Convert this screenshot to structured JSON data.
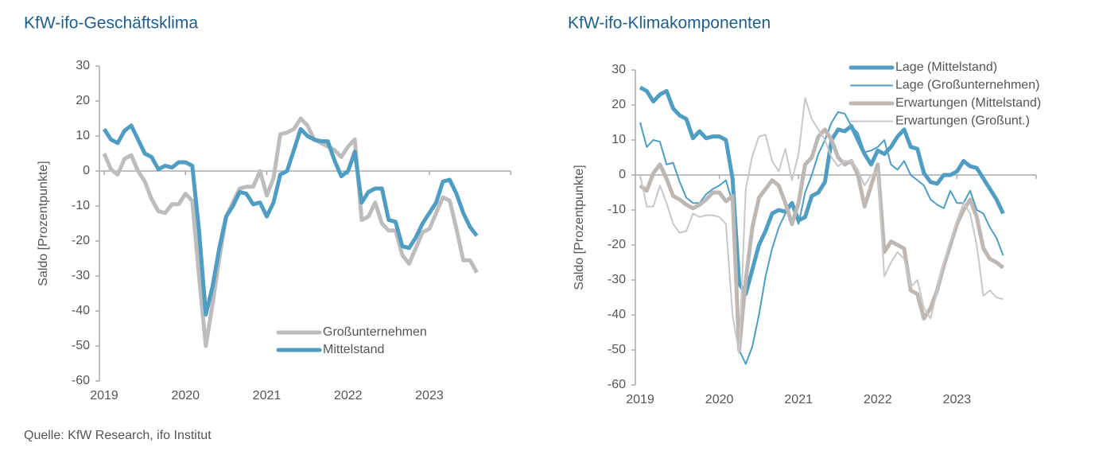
{
  "chart_data": [
    {
      "type": "line",
      "title": "KfW-ifo-Geschäftsklima",
      "ylabel": "Saldo [Prozentpunkte]",
      "categories": [
        "2019",
        null,
        null,
        null,
        null,
        null,
        null,
        null,
        null,
        null,
        null,
        null,
        "2020",
        null,
        null,
        null,
        null,
        null,
        null,
        null,
        null,
        null,
        null,
        null,
        "2021",
        null,
        null,
        null,
        null,
        null,
        null,
        null,
        null,
        null,
        null,
        null,
        "2022",
        null,
        null,
        null,
        null,
        null,
        null,
        null,
        null,
        null,
        null,
        null,
        "2023",
        null,
        null,
        null,
        null,
        null,
        null,
        null
      ],
      "ylim": [
        -60,
        30
      ],
      "yticks": [
        -60,
        -50,
        -40,
        -30,
        -20,
        -10,
        0,
        10,
        20,
        30
      ],
      "legend": "lower center",
      "series": [
        {
          "name": "Großunternehmen",
          "color": "#bdbdbd",
          "line_width": 5,
          "values": [
            5,
            0.5,
            -1,
            3.5,
            4.5,
            0,
            -3,
            -8,
            -11.5,
            -12,
            -9.5,
            -9.5,
            -6.5,
            -8.5,
            -30,
            -50,
            -38,
            -25,
            -13,
            -9,
            -5,
            -4.5,
            -4.5,
            0,
            -7,
            -2,
            10.5,
            11,
            12,
            15,
            13,
            9,
            8,
            7,
            6,
            4,
            7,
            9,
            -14,
            -13,
            -9,
            -15,
            -17,
            -17,
            -24,
            -26.5,
            -22,
            -17.5,
            -16.5,
            -12,
            -7.5,
            -8.5,
            -16.5,
            -25.5,
            -25.5,
            -29
          ]
        },
        {
          "name": "Mittelstand",
          "color": "#4f9dc2",
          "line_width": 5,
          "values": [
            12,
            9,
            8,
            11.5,
            13,
            9,
            5,
            4,
            0.5,
            1.5,
            1,
            2.5,
            2.5,
            1.5,
            -17,
            -41,
            -33,
            -22,
            -13,
            -10,
            -6,
            -6.5,
            -9.5,
            -9,
            -13,
            -9,
            -1,
            0,
            6,
            12,
            10,
            9,
            8.5,
            8.5,
            3,
            -1.5,
            0,
            5.5,
            -9,
            -6,
            -5,
            -5,
            -14,
            -14.5,
            -21.5,
            -22,
            -19,
            -15,
            -12,
            -9,
            -3,
            -2.5,
            -6.5,
            -12,
            -16,
            -18.5
          ]
        }
      ]
    },
    {
      "type": "line",
      "title": "KfW-ifo-Klimakomponenten",
      "ylabel": "Saldo [Prozentpunkte]",
      "categories": [
        "2019",
        null,
        null,
        null,
        null,
        null,
        null,
        null,
        null,
        null,
        null,
        null,
        "2020",
        null,
        null,
        null,
        null,
        null,
        null,
        null,
        null,
        null,
        null,
        null,
        "2021",
        null,
        null,
        null,
        null,
        null,
        null,
        null,
        null,
        null,
        null,
        null,
        "2022",
        null,
        null,
        null,
        null,
        null,
        null,
        null,
        null,
        null,
        null,
        null,
        "2023",
        null,
        null,
        null,
        null,
        null,
        null,
        null
      ],
      "ylim": [
        -60,
        30
      ],
      "yticks": [
        -60,
        -50,
        -40,
        -30,
        -20,
        -10,
        0,
        10,
        20,
        30
      ],
      "legend": "upper right",
      "series": [
        {
          "name": "Lage (Mittelstand)",
          "color": "#4f9dc2",
          "line_width": 5,
          "values": [
            25,
            24,
            21,
            23,
            24,
            19,
            17,
            16,
            10.5,
            12.5,
            10.5,
            11,
            11,
            10,
            -1,
            -31,
            -34,
            -27,
            -20,
            -16,
            -11,
            -10,
            -10.5,
            -8,
            -13,
            -12,
            -6,
            -5,
            -2,
            10,
            13,
            12.5,
            14,
            10,
            6,
            3,
            7,
            6,
            8,
            11,
            13,
            8,
            7.5,
            0.5,
            -2,
            -2.5,
            0,
            0,
            1,
            4,
            2.5,
            2,
            -1,
            -4,
            -7,
            -11
          ]
        },
        {
          "name": "Lage (Großunternehmen)",
          "color": "#4f9dc2",
          "line_width": 2,
          "values": [
            15,
            8,
            10,
            9.5,
            3,
            3.5,
            -2,
            -6.5,
            -8,
            -8,
            -5.5,
            -4,
            -3,
            -1.5,
            -8,
            -50,
            -54,
            -49,
            -40,
            -29,
            -21,
            -15,
            -11,
            -8,
            -14,
            -5,
            0,
            6,
            10,
            15,
            18,
            17.5,
            14,
            12,
            6.5,
            7,
            8,
            10,
            3,
            1.5,
            4,
            0,
            -1.5,
            -3,
            -7,
            -8.5,
            -9.5,
            -4.5,
            -8,
            -8,
            -4.5,
            -10,
            -11,
            -15,
            -18,
            -23
          ]
        },
        {
          "name": "Erwartungen (Mittelstand)",
          "color": "#bdb8b4",
          "line_width": 5,
          "values": [
            -3,
            -4.5,
            0.5,
            3,
            -1,
            -6,
            -7,
            -8.5,
            -9.5,
            -8.5,
            -7,
            -5,
            -5,
            -7.5,
            -6,
            -50,
            -30,
            -15,
            -6.5,
            -4,
            -1.5,
            -3,
            -8,
            -14,
            -8,
            3,
            5,
            11,
            13,
            10,
            5,
            3,
            4,
            0,
            -9,
            -3,
            3,
            -22,
            -19,
            -20,
            -21,
            -33,
            -34,
            -41,
            -38,
            -33,
            -26,
            -20,
            -14,
            -10,
            -7,
            -12,
            -21,
            -24,
            -25,
            -26.5
          ]
        },
        {
          "name": "Erwartungen (Großunt.)",
          "color": "#c8c8c8",
          "line_width": 2,
          "values": [
            0,
            -9,
            -9,
            -3,
            -8,
            -14,
            -16.5,
            -16,
            -11,
            -12,
            -11.5,
            -11.5,
            -12,
            -14,
            -40,
            -51,
            -4,
            5.5,
            11,
            11.5,
            4,
            1,
            7.5,
            -1.5,
            6,
            22,
            16,
            13,
            10,
            5,
            2.5,
            4,
            4,
            1.5,
            -3,
            0,
            1,
            -29,
            -25,
            -22,
            -24,
            -32,
            -30,
            -38,
            -41,
            -33,
            -25,
            -19,
            -13,
            -8,
            -11,
            -20,
            -34.5,
            -33,
            -35,
            -35.5
          ]
        }
      ]
    }
  ],
  "source": "Quelle: KfW Research, ifo Institut"
}
